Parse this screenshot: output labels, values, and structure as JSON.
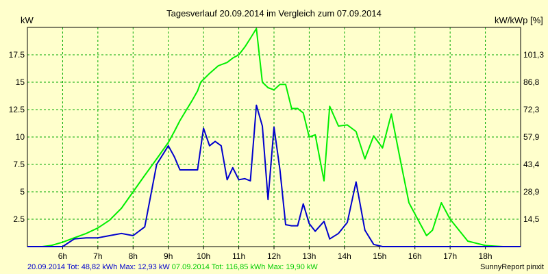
{
  "chart_data": {
    "type": "line",
    "title": "Tagesverlauf 20.09.2014 im Vergleich zum 07.09.2014",
    "ylabel_left": "kW",
    "ylabel_right": "kW/kWp [%]",
    "x_range_hours": [
      5.0,
      19.0
    ],
    "ylim": [
      0,
      20
    ],
    "grid": true,
    "x_ticks": [
      {
        "hour": 6,
        "label": "6h"
      },
      {
        "hour": 7,
        "label": "7h"
      },
      {
        "hour": 8,
        "label": "8h"
      },
      {
        "hour": 9,
        "label": "9h"
      },
      {
        "hour": 10,
        "label": "10h"
      },
      {
        "hour": 11,
        "label": "11h"
      },
      {
        "hour": 12,
        "label": "12h"
      },
      {
        "hour": 13,
        "label": "13h"
      },
      {
        "hour": 14,
        "label": "14h"
      },
      {
        "hour": 15,
        "label": "15h"
      },
      {
        "hour": 16,
        "label": "16h"
      },
      {
        "hour": 17,
        "label": "17h"
      },
      {
        "hour": 18,
        "label": "18h"
      }
    ],
    "y_ticks_left": [
      {
        "value": 2.5,
        "label": "2.5"
      },
      {
        "value": 5,
        "label": "5"
      },
      {
        "value": 7.5,
        "label": "7.5"
      },
      {
        "value": 10,
        "label": "10"
      },
      {
        "value": 12.5,
        "label": "12.5"
      },
      {
        "value": 15,
        "label": "15"
      },
      {
        "value": 17.5,
        "label": "17.5"
      }
    ],
    "y_ticks_right": [
      {
        "value": 2.5,
        "label": "14,5"
      },
      {
        "value": 5,
        "label": "28,9"
      },
      {
        "value": 7.5,
        "label": "43,4"
      },
      {
        "value": 10,
        "label": "57,9"
      },
      {
        "value": 12.5,
        "label": "72,3"
      },
      {
        "value": 15,
        "label": "86,8"
      },
      {
        "value": 17.5,
        "label": "101,3"
      }
    ],
    "series": [
      {
        "name": "07.09.2014",
        "color": "#00ee00",
        "x": [
          5.0,
          5.42,
          5.67,
          6.0,
          6.33,
          6.67,
          7.0,
          7.33,
          7.67,
          8.0,
          8.33,
          8.67,
          9.0,
          9.17,
          9.33,
          9.5,
          9.67,
          9.83,
          9.92,
          10.17,
          10.42,
          10.67,
          10.83,
          11.0,
          11.17,
          11.33,
          11.5,
          11.67,
          11.83,
          12.0,
          12.17,
          12.33,
          12.5,
          12.67,
          12.83,
          13.0,
          13.17,
          13.42,
          13.58,
          13.83,
          14.08,
          14.33,
          14.58,
          14.83,
          15.08,
          15.33,
          15.58,
          15.83,
          16.08,
          16.33,
          16.5,
          16.75,
          17.0,
          17.25,
          17.5,
          17.75,
          18.0,
          18.25,
          18.5,
          18.75,
          19.0
        ],
        "y": [
          0,
          0,
          0.1,
          0.4,
          0.8,
          1.2,
          1.7,
          2.4,
          3.5,
          5.0,
          6.5,
          8.0,
          9.5,
          10.5,
          11.5,
          12.4,
          13.3,
          14.2,
          15.0,
          15.8,
          16.5,
          16.8,
          17.2,
          17.5,
          18.2,
          19.0,
          19.9,
          15.0,
          14.5,
          14.3,
          14.8,
          14.8,
          12.6,
          12.6,
          12.2,
          10.0,
          10.2,
          6.0,
          12.8,
          11.0,
          11.1,
          10.5,
          8.0,
          10.1,
          9.0,
          12.1,
          8.0,
          4.0,
          2.5,
          1.0,
          1.5,
          4.0,
          2.5,
          1.5,
          0.5,
          0.3,
          0.1,
          0.05,
          0,
          0,
          0
        ]
      },
      {
        "name": "20.09.2014",
        "color": "#0000cc",
        "x": [
          5.0,
          5.5,
          6.0,
          6.33,
          6.67,
          7.0,
          7.33,
          7.67,
          8.0,
          8.33,
          8.67,
          9.0,
          9.17,
          9.33,
          9.5,
          9.67,
          9.83,
          10.0,
          10.17,
          10.33,
          10.5,
          10.67,
          10.83,
          11.0,
          11.17,
          11.33,
          11.5,
          11.67,
          11.83,
          12.0,
          12.17,
          12.33,
          12.5,
          12.67,
          12.83,
          13.0,
          13.17,
          13.42,
          13.58,
          13.83,
          14.08,
          14.33,
          14.58,
          14.83,
          15.08,
          15.33,
          15.58,
          15.83,
          16.08,
          16.33,
          16.5,
          16.75,
          17.0,
          17.5,
          18.0,
          18.5,
          19.0
        ],
        "y": [
          0,
          0,
          0,
          0.7,
          0.8,
          0.8,
          1.0,
          1.2,
          1.0,
          1.8,
          7.5,
          9.2,
          8.2,
          7.0,
          7.0,
          7.0,
          7.0,
          10.8,
          9.2,
          9.6,
          9.2,
          6.1,
          7.2,
          6.1,
          6.2,
          6.0,
          12.9,
          11.0,
          4.3,
          10.9,
          7.0,
          2.0,
          1.9,
          1.9,
          3.9,
          2.1,
          1.4,
          2.3,
          0.7,
          1.2,
          2.2,
          5.9,
          1.5,
          0.2,
          0,
          0,
          0,
          0,
          0,
          0,
          0,
          0,
          0,
          0,
          0,
          0,
          0
        ]
      }
    ]
  },
  "footer": {
    "series2_date": "20.09.2014",
    "series2_tot": "Tot: 48,82 kWh",
    "series2_max": "Max: 12,93 kW",
    "series1_date": "07.09.2014",
    "series1_tot": "Tot: 116,85 kWh",
    "series1_max": "Max: 19,90 kW",
    "brand": "SunnyReport pinxit"
  }
}
